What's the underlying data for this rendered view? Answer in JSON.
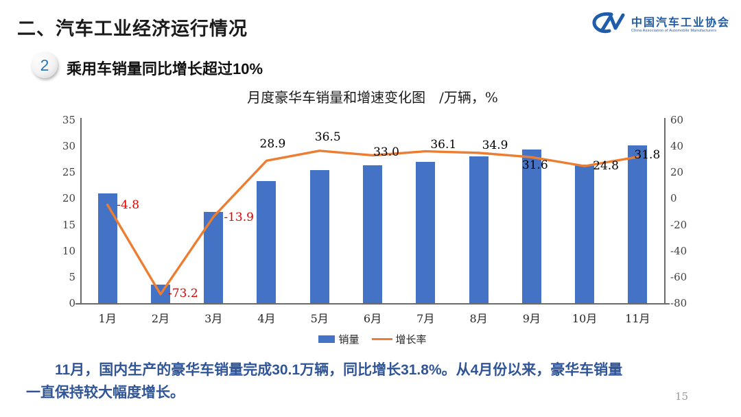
{
  "header": {
    "title": "二、汽车工业经济运行情况",
    "logo": {
      "mark": "CM-logo",
      "org_cn": "中国汽车工业协会",
      "org_en": "China Association of Automobile Manufacturers",
      "color": "#1f5ca9"
    }
  },
  "section": {
    "number": "2",
    "heading": "乘用车销量同比增长超过10%"
  },
  "chart_data": {
    "type": "bar",
    "title": "月度豪华车销量和增速变化图　/万辆，%",
    "categories": [
      "1月",
      "2月",
      "3月",
      "4月",
      "5月",
      "6月",
      "7月",
      "8月",
      "9月",
      "10月",
      "11月"
    ],
    "series": [
      {
        "name": "销量",
        "type": "bar",
        "axis": "left",
        "color": "#4472c4",
        "values": [
          21.0,
          3.5,
          17.5,
          23.3,
          25.4,
          26.3,
          27.0,
          28.0,
          29.3,
          26.5,
          30.1
        ]
      },
      {
        "name": "增长率",
        "type": "line",
        "axis": "right",
        "color": "#ed7d31",
        "values": [
          -4.8,
          -73.2,
          -13.9,
          28.9,
          36.5,
          33.0,
          36.1,
          34.9,
          31.6,
          24.8,
          31.8
        ]
      }
    ],
    "left_axis": {
      "min": 0,
      "max": 35,
      "ticks": [
        0,
        5,
        10,
        15,
        20,
        25,
        30,
        35
      ]
    },
    "right_axis": {
      "min": -80,
      "max": 60,
      "ticks": [
        60,
        40,
        20,
        0,
        -20,
        -40,
        -60,
        -80
      ]
    },
    "grid": false,
    "legend_position": "bottom",
    "positive_label_color": "#000000",
    "negative_label_color": "#e00000"
  },
  "footer": {
    "note_lines": [
      "11月，国内生产的豪华车销量完成30.1万辆，同比增长31.8%。从4月份以来，豪华车销量",
      "一直保持较大幅度增长。"
    ],
    "page_number": "15"
  }
}
